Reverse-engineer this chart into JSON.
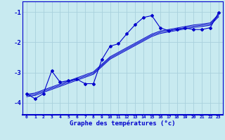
{
  "xlabel": "Graphe des températures (°c)",
  "bg_color": "#c8eaf0",
  "line_color": "#0000cc",
  "grid_color": "#a8d0dc",
  "xlim": [
    -0.5,
    23.5
  ],
  "ylim": [
    -4.4,
    -0.65
  ],
  "yticks": [
    -4,
    -3,
    -2,
    -1
  ],
  "xtick_labels": [
    "0",
    "1",
    "2",
    "3",
    "4",
    "5",
    "6",
    "7",
    "8",
    "9",
    "10",
    "11",
    "12",
    "13",
    "14",
    "15",
    "16",
    "17",
    "18",
    "19",
    "20",
    "21",
    "22",
    "23"
  ],
  "x_data": [
    0,
    1,
    2,
    3,
    4,
    5,
    6,
    7,
    8,
    9,
    10,
    11,
    12,
    13,
    14,
    15,
    16,
    17,
    18,
    19,
    20,
    21,
    22,
    23
  ],
  "y_main": [
    -3.7,
    -3.87,
    -3.7,
    -2.95,
    -3.32,
    -3.27,
    -3.22,
    -3.37,
    -3.37,
    -2.58,
    -2.13,
    -2.05,
    -1.72,
    -1.42,
    -1.18,
    -1.12,
    -1.52,
    -1.62,
    -1.57,
    -1.53,
    -1.58,
    -1.58,
    -1.52,
    -1.02
  ],
  "y_trend1": [
    -3.72,
    -3.68,
    -3.58,
    -3.48,
    -3.38,
    -3.28,
    -3.18,
    -3.08,
    -2.98,
    -2.73,
    -2.48,
    -2.33,
    -2.18,
    -2.03,
    -1.88,
    -1.73,
    -1.63,
    -1.58,
    -1.53,
    -1.48,
    -1.43,
    -1.4,
    -1.36,
    -1.08
  ],
  "y_trend2": [
    -3.76,
    -3.72,
    -3.62,
    -3.52,
    -3.42,
    -3.32,
    -3.22,
    -3.12,
    -3.02,
    -2.77,
    -2.52,
    -2.37,
    -2.22,
    -2.07,
    -1.92,
    -1.77,
    -1.67,
    -1.62,
    -1.57,
    -1.52,
    -1.47,
    -1.44,
    -1.4,
    -1.12
  ],
  "y_trend3": [
    -3.8,
    -3.76,
    -3.66,
    -3.56,
    -3.46,
    -3.36,
    -3.26,
    -3.16,
    -3.06,
    -2.81,
    -2.56,
    -2.41,
    -2.26,
    -2.11,
    -1.96,
    -1.81,
    -1.71,
    -1.66,
    -1.61,
    -1.56,
    -1.51,
    -1.48,
    -1.44,
    -1.16
  ]
}
